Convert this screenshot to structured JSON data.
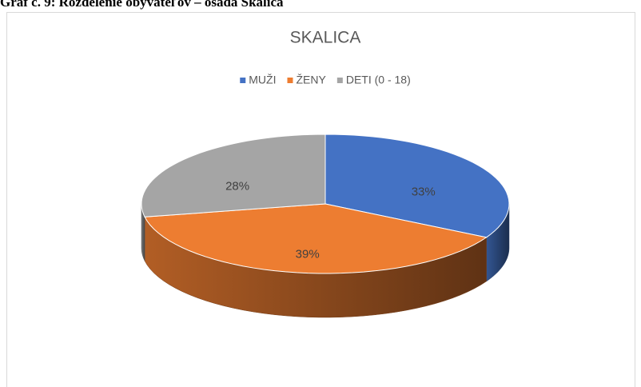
{
  "caption": "Graf č. 9: Rozdelenie obyvateľov – osada Skalica",
  "chart_data": {
    "type": "pie",
    "title": "SKALICA",
    "categories": [
      "MUŽI",
      "ŽENY",
      "DETI (0 - 18)"
    ],
    "values": [
      33,
      39,
      28
    ],
    "value_labels": [
      "33%",
      "39%",
      "28%"
    ],
    "colors": [
      "#4472c4",
      "#ed7d31",
      "#a5a5a5"
    ],
    "legend": "top"
  }
}
